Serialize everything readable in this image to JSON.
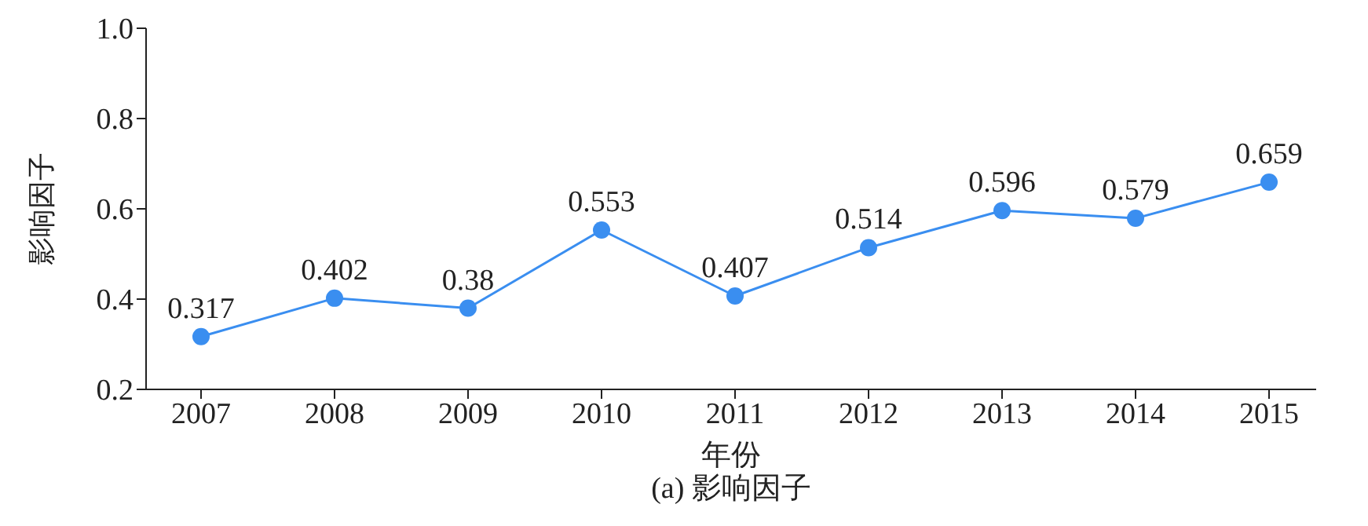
{
  "chart_data": {
    "type": "line",
    "xlabel": "年份",
    "ylabel": "影响因子",
    "annotations": [
      "(a) 影响因子"
    ],
    "categories": [
      "2007",
      "2008",
      "2009",
      "2010",
      "2011",
      "2012",
      "2013",
      "2014",
      "2015"
    ],
    "series": [
      {
        "color": "#3a8ef0",
        "values": [
          0.317,
          0.402,
          0.38,
          0.553,
          0.407,
          0.514,
          0.596,
          0.579,
          0.659
        ]
      }
    ],
    "ylim": [
      0.2,
      1.0
    ],
    "yticks": [
      0.2,
      0.4,
      0.6,
      0.8,
      {
        "value": 1.0,
        "label": "1.0"
      }
    ],
    "grid": false,
    "legend": false,
    "marker": "circle",
    "line_style": "solid",
    "data_labels": true
  }
}
